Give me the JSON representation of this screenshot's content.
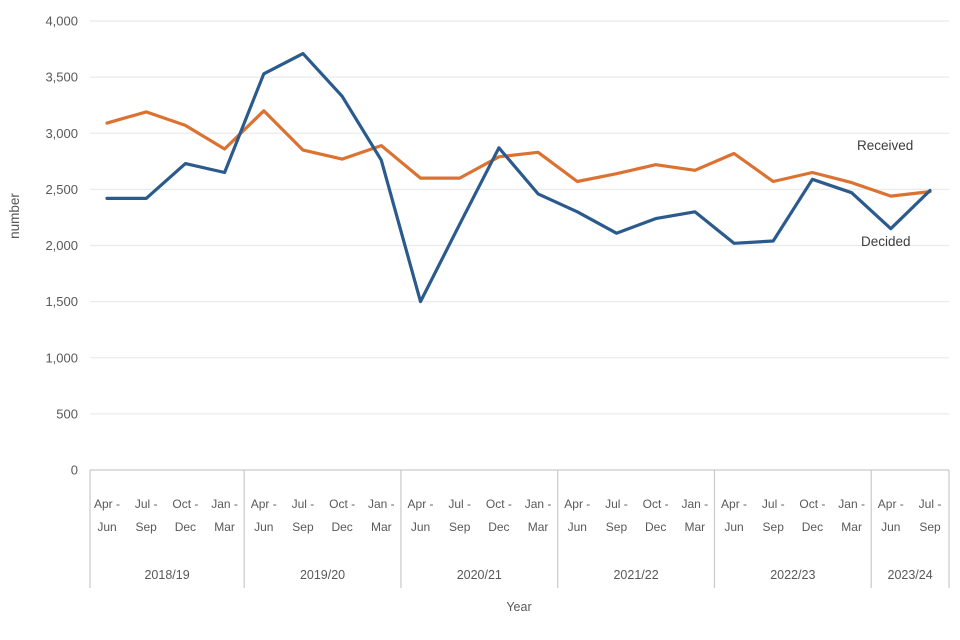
{
  "chart_data": {
    "type": "line",
    "title": "",
    "ylabel": "number",
    "xlabel": "Year",
    "ylim": [
      0,
      4000
    ],
    "y_tick_step": 500,
    "y_ticks": [
      "0",
      "500",
      "1,000",
      "1,500",
      "2,000",
      "2,500",
      "3,000",
      "3,500",
      "4,000"
    ],
    "grid": true,
    "legend_position": "end-of-line labels (Received above orange line, Decided below blue line)",
    "groups": [
      {
        "year": "2018/19",
        "quarters": [
          "Apr - Jun",
          "Jul - Sep",
          "Oct - Dec",
          "Jan - Mar"
        ]
      },
      {
        "year": "2019/20",
        "quarters": [
          "Apr - Jun",
          "Jul - Sep",
          "Oct - Dec",
          "Jan - Mar"
        ]
      },
      {
        "year": "2020/21",
        "quarters": [
          "Apr - Jun",
          "Jul - Sep",
          "Oct - Dec",
          "Jan - Mar"
        ]
      },
      {
        "year": "2021/22",
        "quarters": [
          "Apr - Jun",
          "Jul - Sep",
          "Oct - Dec",
          "Jan - Mar"
        ]
      },
      {
        "year": "2022/23",
        "quarters": [
          "Apr - Jun",
          "Jul - Sep",
          "Oct - Dec",
          "Jan - Mar"
        ]
      },
      {
        "year": "2023/24",
        "quarters": [
          "Apr - Jun",
          "Jul - Sep"
        ]
      }
    ],
    "series": [
      {
        "name": "Received",
        "color": "#DC7232",
        "values": [
          3090,
          3190,
          3070,
          2860,
          3200,
          2850,
          2770,
          2890,
          2600,
          2600,
          2790,
          2830,
          2570,
          2640,
          2720,
          2670,
          2820,
          2570,
          2650,
          2560,
          2440,
          2480
        ]
      },
      {
        "name": "Decided",
        "color": "#2B5A8C",
        "values": [
          2420,
          2420,
          2730,
          2650,
          3530,
          3710,
          3330,
          2760,
          1500,
          2190,
          2870,
          2460,
          2300,
          2110,
          2240,
          2300,
          2020,
          2040,
          2590,
          2470,
          2150,
          2490
        ]
      }
    ]
  },
  "colors": {
    "gridline": "#EBEBEB",
    "axis_line": "#C9C9C9",
    "tick_text": "#595959",
    "series_label_text": "#3D3D3D"
  }
}
